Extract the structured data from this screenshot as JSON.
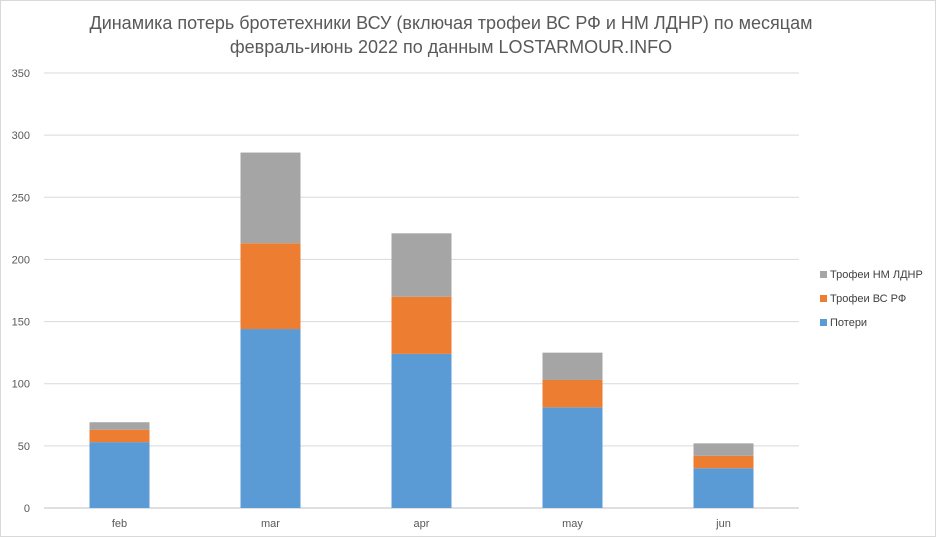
{
  "chart_data": {
    "type": "bar",
    "stacked": true,
    "title": "Динамика потерь бротетехники ВСУ (включая трофеи ВС РФ и НМ ЛДНР) по месяцам",
    "subtitle": "февраль-июнь 2022 по данным LOSTARMOUR.INFO",
    "xlabel": "",
    "ylabel": "",
    "categories": [
      "feb",
      "mar",
      "apr",
      "may",
      "jun"
    ],
    "ylim": [
      0,
      350
    ],
    "yticks": [
      0,
      50,
      100,
      150,
      200,
      250,
      300,
      350
    ],
    "grid": true,
    "legend_position": "right",
    "series": [
      {
        "name": "Потери",
        "color": "#5b9bd5",
        "values": [
          53,
          144,
          124,
          81,
          32
        ]
      },
      {
        "name": "Трофеи ВС РФ",
        "color": "#ed7d31",
        "values": [
          10,
          69,
          46,
          22,
          10
        ]
      },
      {
        "name": "Трофеи НМ ЛДНР",
        "color": "#a5a5a5",
        "values": [
          6,
          73,
          51,
          22,
          10
        ]
      }
    ]
  }
}
